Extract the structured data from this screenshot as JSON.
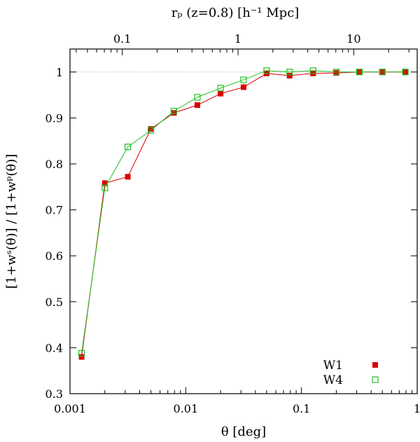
{
  "chart_data": {
    "type": "line",
    "x_scale": "log",
    "xlim": [
      0.001,
      1
    ],
    "ylim": [
      0.3,
      1.05
    ],
    "xlabel": "θ [deg]",
    "ylabel": "[1+wˢ(θ)] / [1+wᵖ(θ)]",
    "top_axis_label": "rₚ (z=0.8) [h⁻¹ Mpc]",
    "x_tick_values": [
      0.001,
      0.01,
      0.1,
      1
    ],
    "x_tick_labels": [
      "0.001",
      "0.01",
      "0.1",
      "1"
    ],
    "y_tick_values": [
      0.3,
      0.4,
      0.5,
      0.6,
      0.7,
      0.8,
      0.9,
      1.0
    ],
    "y_tick_labels": [
      "0.3",
      "0.4",
      "0.5",
      "0.6",
      "0.7",
      "0.8",
      "0.9",
      "1"
    ],
    "top_tick_values": [
      0.1,
      1,
      10
    ],
    "top_tick_labels": [
      "0.1",
      "1",
      "10"
    ],
    "top_axis_theta_per_rp": 0.0283,
    "reference_line": 1.0,
    "legend_position": "bottom-right",
    "series": [
      {
        "name": "W1",
        "color": "#d90000",
        "marker": "filled-square",
        "x": [
          0.00126,
          0.002,
          0.00316,
          0.005,
          0.0079,
          0.0126,
          0.02,
          0.0316,
          0.05,
          0.079,
          0.126,
          0.2,
          0.316,
          0.5,
          0.79
        ],
        "y": [
          0.38,
          0.758,
          0.772,
          0.876,
          0.911,
          0.928,
          0.953,
          0.967,
          0.997,
          0.992,
          0.997,
          0.998,
          1.0,
          1.0,
          1.0
        ]
      },
      {
        "name": "W4",
        "color": "#22c022",
        "marker": "open-square",
        "x": [
          0.00126,
          0.002,
          0.00316,
          0.005,
          0.0079,
          0.0126,
          0.02,
          0.0316,
          0.05,
          0.079,
          0.126,
          0.2,
          0.316,
          0.5,
          0.79
        ],
        "y": [
          0.388,
          0.748,
          0.837,
          0.873,
          0.915,
          0.945,
          0.965,
          0.983,
          1.003,
          1.0,
          1.003,
          1.0,
          1.0,
          1.0,
          1.0
        ]
      }
    ]
  }
}
